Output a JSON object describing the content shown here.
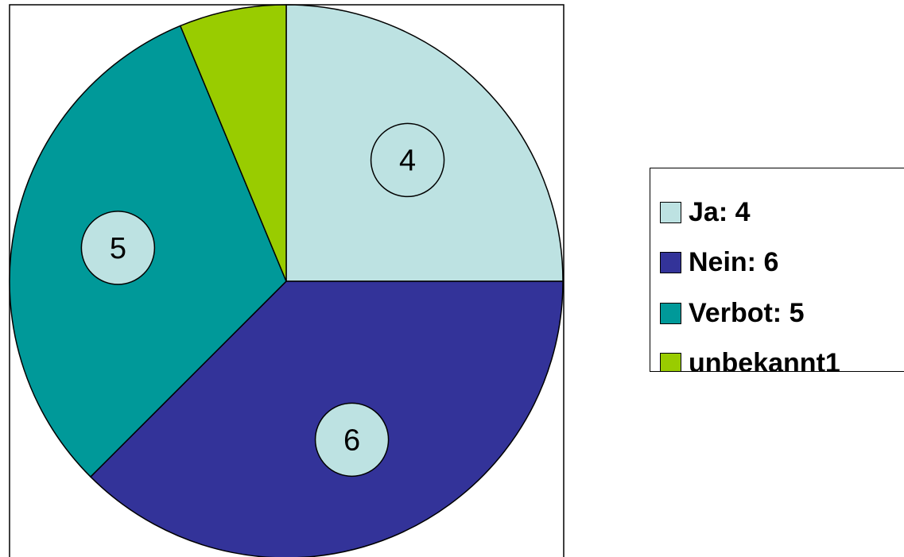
{
  "chart_data": {
    "type": "pie",
    "title": "",
    "start_angle_deg": 0,
    "direction": "clockwise",
    "slices": [
      {
        "name": "Ja: 4",
        "value": 4,
        "data_label": "4",
        "color": "#BDE2E2"
      },
      {
        "name": "Nein: 6",
        "value": 6,
        "data_label": "6",
        "color": "#333399"
      },
      {
        "name": "Verbot: 5",
        "value": 5,
        "data_label": "5",
        "color": "#009999"
      },
      {
        "name": "unbekannt1",
        "value": 1,
        "data_label": "",
        "color": "#99CC00"
      }
    ],
    "data_label_background": "#BDE2E2",
    "legend": {
      "position": "right",
      "entries": [
        "Ja: 4",
        "Nein: 6",
        "Verbot: 5",
        "unbekannt1"
      ]
    }
  }
}
